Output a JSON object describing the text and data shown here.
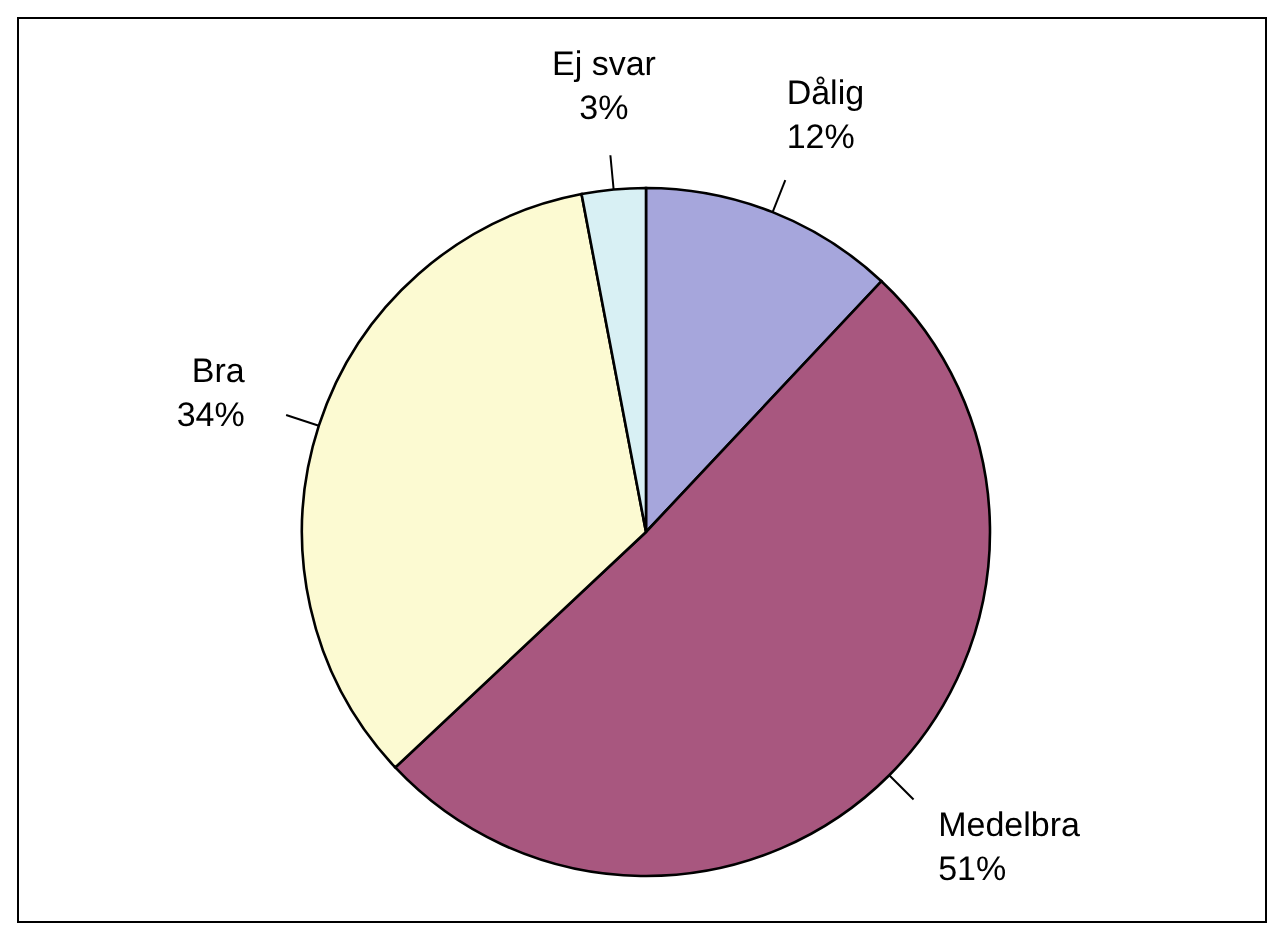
{
  "chart_data": {
    "type": "pie",
    "categories": [
      "Dålig",
      "Medelbra",
      "Bra",
      "Ej svar"
    ],
    "values": [
      12,
      51,
      34,
      3
    ],
    "value_labels": [
      "12%",
      "51%",
      "34%",
      "3%"
    ],
    "colors": [
      "#a6a6dc",
      "#a8577f",
      "#fcfad2",
      "#d8f0f4"
    ]
  }
}
